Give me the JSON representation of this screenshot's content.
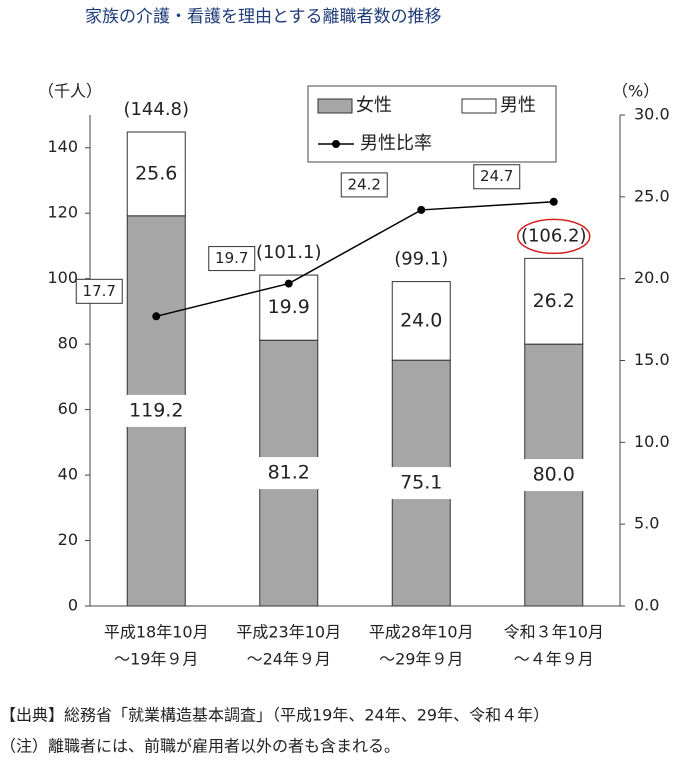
{
  "chart_data": {
    "type": "stacked-bar-line",
    "title": "家族の介護・看護を理由とする離職者数の推移",
    "y_label": "（千人）",
    "y2_label": "（%）",
    "categories": [
      [
        "平成18年10月",
        "～19年９月"
      ],
      [
        "平成23年10月",
        "～24年９月"
      ],
      [
        "平成28年10月",
        "～29年９月"
      ],
      [
        "令和３年10月",
        "～４年９月"
      ]
    ],
    "series": [
      {
        "name": "女性",
        "color": "#a6a6a6",
        "values": [
          119.2,
          81.2,
          75.1,
          80.0
        ],
        "value_labels": [
          "119.2",
          "81.2",
          "75.1",
          "80.0"
        ]
      },
      {
        "name": "男性",
        "color": "#ffffff",
        "values": [
          25.6,
          19.9,
          24.0,
          26.2
        ],
        "value_labels": [
          "25.6",
          "19.9",
          "24.0",
          "26.2"
        ]
      },
      {
        "name": "男性比率",
        "color": "#000000",
        "axis": "y2",
        "values": [
          17.7,
          19.7,
          24.2,
          24.7
        ],
        "value_labels": [
          "17.7",
          "19.7",
          "24.2",
          "24.7"
        ]
      }
    ],
    "totals": {
      "values": [
        144.8,
        101.1,
        99.1,
        106.2
      ],
      "value_labels": [
        "(144.8)",
        "(101.1)",
        "(99.1)",
        "(106.2)"
      ]
    },
    "ylim": [
      0,
      150
    ],
    "yticks": [
      0,
      20,
      40,
      60,
      80,
      100,
      120,
      140
    ],
    "y2lim": [
      0,
      30
    ],
    "y2ticks": [
      {
        "value": 0,
        "label": "0.0"
      },
      {
        "value": 5,
        "label": "5.0"
      },
      {
        "value": 10,
        "label": "10.0"
      },
      {
        "value": 15,
        "label": "15.0"
      },
      {
        "value": 20,
        "label": "20.0"
      },
      {
        "value": 25,
        "label": "25.0"
      },
      {
        "value": 30,
        "label": "30.0"
      }
    ],
    "grid": false,
    "notes": [
      "【出典】総務省「就業構造基本調査」（平成19年、24年、29年、令和４年）",
      "（注）離職者には、前職が雇用者以外の者も含まれる。"
    ]
  }
}
